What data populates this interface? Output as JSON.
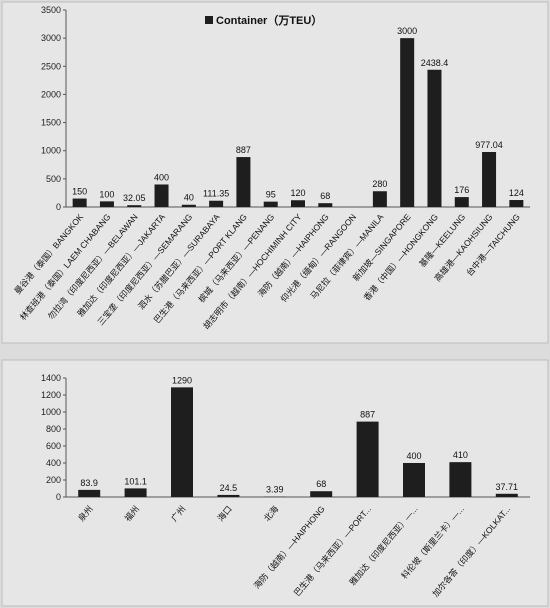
{
  "chart_data": [
    {
      "type": "bar",
      "legend": "Container（万TEU）",
      "legend_position": "top",
      "grid": false,
      "ylim": [
        0,
        3500
      ],
      "yticks": [
        0,
        500,
        1000,
        1500,
        2000,
        2500,
        3000,
        3500
      ],
      "categories": [
        "曼谷港（泰国）BANGKOK",
        "林查班港（泰国）LAEM CHABANG",
        "勿拉湾（印度尼西亚）—BELAWAN",
        "雅加达（印度尼西亚）—JAKARTA",
        "三宝垄（印度尼西亚）—SEMARANG",
        "泗水（苏腊巴亚）—SURABAYA",
        "巴生港（马来西亚）—PORT KLANG",
        "槟城（马来西亚）—PENANG",
        "胡志明市（越南）—HOCHIMINH CITY",
        "海防（越南）—HAIPHONG",
        "仰光港（缅甸）—RANGOON",
        "马尼拉（菲律宾）—MANILA",
        "新加坡—SINGAPORE",
        "香港（中国）—HONGKONG",
        "基隆—KEELUNG",
        "高雄港—KAOHSIUNG",
        "台中港—TAICHUNG"
      ],
      "values": [
        150,
        100,
        32.05,
        400,
        40,
        111.35,
        887,
        95,
        120,
        68,
        0,
        280,
        3000,
        2438.4,
        176,
        977.04,
        124
      ],
      "value_labels": [
        "150",
        "100",
        "32.05",
        "400",
        "40",
        "111.35",
        "887",
        "95",
        "120",
        "68",
        "",
        "280",
        "3000",
        "2438.4",
        "176",
        "977.04",
        "124"
      ],
      "bar_color": "#1e1e1e"
    },
    {
      "type": "bar",
      "grid": false,
      "ylim": [
        0,
        1400
      ],
      "yticks": [
        0,
        200,
        400,
        600,
        800,
        1000,
        1200,
        1400
      ],
      "categories": [
        "泉州",
        "福州",
        "广州",
        "海口",
        "北海",
        "海防（越南）—HAIPHONG",
        "巴生港（马来西亚）—PORT...",
        "雅加达（印度尼西亚）—...",
        "科伦坡（斯里兰卡）—...",
        "加尔各答（印度）—KOLKAT..."
      ],
      "values": [
        83.9,
        101.1,
        1290,
        24.5,
        3.39,
        68,
        887,
        400,
        410,
        37.71
      ],
      "value_labels": [
        "83.9",
        "101.1",
        "1290",
        "24.5",
        "3.39",
        "68",
        "887",
        "400",
        "410",
        "37.71"
      ],
      "bar_color": "#1e1e1e"
    }
  ]
}
